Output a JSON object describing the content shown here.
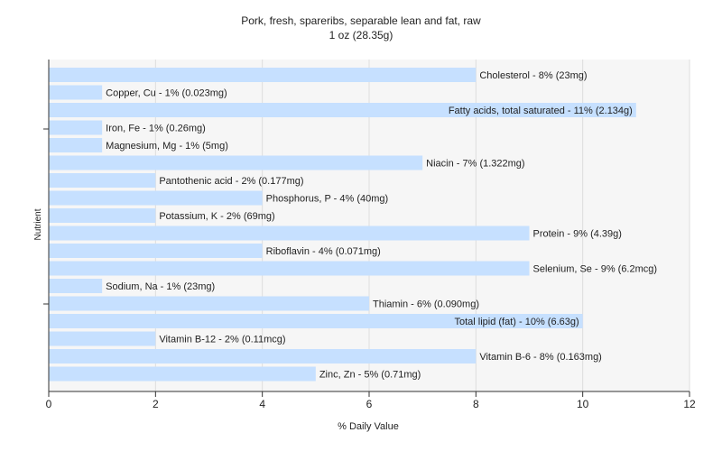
{
  "chart_data": {
    "type": "bar",
    "orientation": "horizontal",
    "title": "Pork, fresh, spareribs, separable lean and fat, raw",
    "subtitle": "1 oz (28.35g)",
    "xlabel": "% Daily Value",
    "ylabel": "Nutrient",
    "xlim": [
      0,
      12
    ],
    "xticks": [
      0,
      2,
      4,
      6,
      8,
      10,
      12
    ],
    "grid": true,
    "bar_color": "#c6e0ff",
    "categories": [
      "Cholesterol - 8% (23mg)",
      "Copper, Cu - 1% (0.023mg)",
      "Fatty acids, total saturated - 11% (2.134g)",
      "Iron, Fe - 1% (0.26mg)",
      "Magnesium, Mg - 1% (5mg)",
      "Niacin - 7% (1.322mg)",
      "Pantothenic acid - 2% (0.177mg)",
      "Phosphorus, P - 4% (40mg)",
      "Potassium, K - 2% (69mg)",
      "Protein - 9% (4.39g)",
      "Riboflavin - 4% (0.071mg)",
      "Selenium, Se - 9% (6.2mcg)",
      "Sodium, Na - 1% (23mg)",
      "Thiamin - 6% (0.090mg)",
      "Total lipid (fat) - 10% (6.63g)",
      "Vitamin B-12 - 2% (0.11mcg)",
      "Vitamin B-6 - 8% (0.163mg)",
      "Zinc, Zn - 5% (0.71mg)"
    ],
    "values": [
      8,
      1,
      11,
      1,
      1,
      7,
      2,
      4,
      2,
      9,
      4,
      9,
      1,
      6,
      10,
      2,
      8,
      5
    ]
  }
}
